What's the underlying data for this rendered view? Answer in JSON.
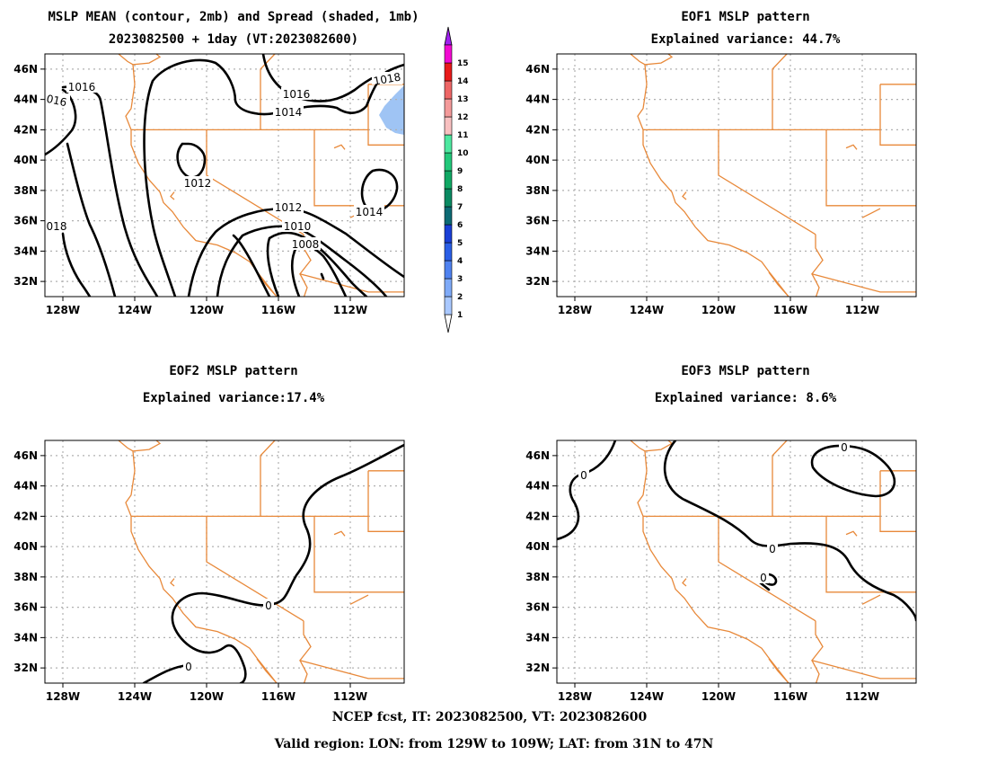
{
  "panels": [
    {
      "title1": "MSLP MEAN (contour, 2mb) and Spread (shaded, 1mb)",
      "title2": "2023082500 + 1day (VT:2023082600)"
    },
    {
      "title1": "EOF1 MSLP pattern",
      "title2": "Explained variance: 44.7%"
    },
    {
      "title1": "EOF2 MSLP pattern",
      "title2": "Explained variance:17.4%"
    },
    {
      "title1": "EOF3 MSLP pattern",
      "title2": "Explained variance: 8.6%"
    }
  ],
  "axes": {
    "lat_ticks": [
      "46N",
      "44N",
      "42N",
      "40N",
      "38N",
      "36N",
      "34N",
      "32N"
    ],
    "lon_ticks": [
      "128W",
      "124W",
      "120W",
      "116W",
      "112W"
    ],
    "lon_range": [
      -129,
      -109
    ],
    "lat_range": [
      31,
      47
    ]
  },
  "contour_labels": {
    "mean": [
      "1016",
      "016",
      "1014",
      "1016",
      "1018",
      "1012",
      "1012",
      "1014",
      "1010",
      "1008",
      "018"
    ],
    "eof2": [
      "0",
      "0"
    ],
    "eof3": [
      "0",
      "0",
      "0",
      "0"
    ]
  },
  "colorbar": {
    "labels": [
      "1",
      "2",
      "3",
      "4",
      "5",
      "6",
      "7",
      "8",
      "9",
      "10",
      "11",
      "12",
      "13",
      "14",
      "15"
    ],
    "colors": [
      "#a9c8ff",
      "#7faaf8",
      "#4f82f0",
      "#2a5ee6",
      "#1a3fd6",
      "#0c6a74",
      "#0a8a62",
      "#10a864",
      "#22c87a",
      "#4ee8a0",
      "#f8c0c0",
      "#f49a9a",
      "#ee6666",
      "#e81a1a",
      "#f20ad2"
    ],
    "top_color": "#a020f0"
  },
  "chart_data": [
    {
      "type": "contour",
      "title": "MSLP MEAN (contour, 2mb) and Spread (shaded, 1mb)",
      "subtitle": "2023082500 + 1day (VT:2023082600)",
      "contour_levels": [
        1008,
        1010,
        1012,
        1014,
        1016,
        1018
      ],
      "units": "mb",
      "spread_shaded_max": 1,
      "xlim": [
        -129,
        -109
      ],
      "ylim": [
        31,
        47
      ],
      "grid": true
    },
    {
      "type": "contour",
      "title": "EOF1 MSLP pattern",
      "subtitle": "Explained variance: 44.7%",
      "explained_variance": 44.7,
      "contour_levels": []
    },
    {
      "type": "contour",
      "title": "EOF2 MSLP pattern",
      "subtitle": "Explained variance:17.4%",
      "explained_variance": 17.4,
      "contour_levels": [
        0
      ]
    },
    {
      "type": "contour",
      "title": "EOF3 MSLP pattern",
      "subtitle": "Explained variance: 8.6%",
      "explained_variance": 8.6,
      "contour_levels": [
        0
      ]
    }
  ],
  "footer": {
    "line1": "NCEP fcst, IT: 2023082500, VT: 2023082600",
    "line2": "Valid region: LON: from 129W to 109W; LAT: from 31N to 47N"
  }
}
